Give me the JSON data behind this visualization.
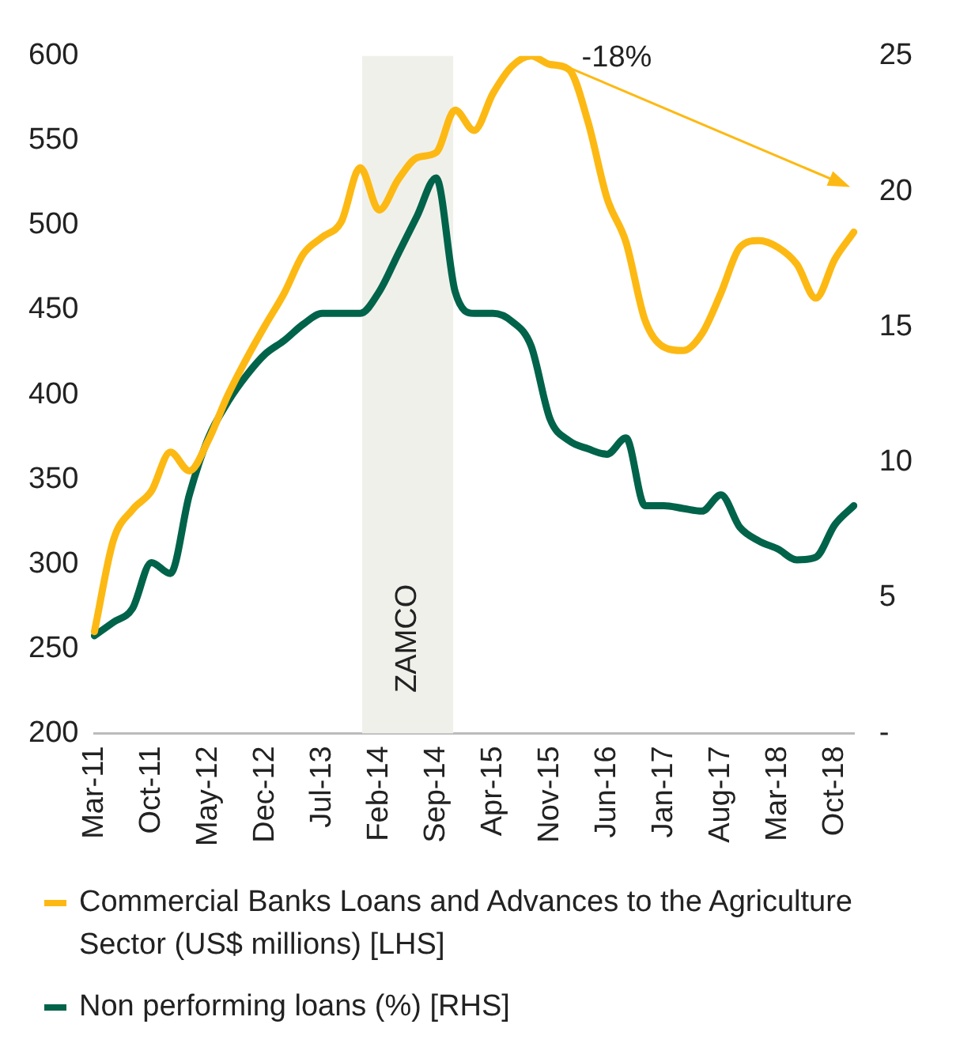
{
  "chart_data": {
    "type": "line",
    "categories": [
      "Mar-11",
      null,
      null,
      "Oct-11",
      null,
      null,
      "May-12",
      null,
      null,
      "Dec-12",
      null,
      null,
      "Jul-13",
      null,
      null,
      "Feb-14",
      null,
      null,
      "Sep-14",
      null,
      null,
      "Apr-15",
      null,
      null,
      "Nov-15",
      null,
      null,
      "Jun-16",
      null,
      null,
      "Jan-17",
      null,
      null,
      "Aug-17",
      null,
      null,
      "Mar-18",
      null,
      null,
      "Oct-18",
      null
    ],
    "series": [
      {
        "name": "Commercial Banks Loans and Advances to the Agriculture Sector (US$ millions) [LHS]",
        "color": "#fdb913",
        "values": [
          260,
          314,
          332,
          343,
          366,
          355,
          373,
          399,
          421,
          441,
          460,
          483,
          493,
          502,
          534,
          509,
          527,
          540,
          543,
          568,
          556,
          578,
          594,
          600,
          595,
          592,
          561,
          516,
          490,
          444,
          428,
          426,
          436,
          460,
          487,
          491,
          487,
          477,
          457,
          480,
          496
        ]
      },
      {
        "name": "Non performing loans (%) [RHS]",
        "color": "#00634a",
        "axis": "y2",
        "values": [
          3.6,
          4.1,
          4.6,
          6.3,
          5.9,
          8.8,
          10.9,
          12.2,
          13.2,
          14.0,
          14.5,
          15.1,
          15.5,
          15.5,
          15.5,
          16.3,
          17.7,
          19.1,
          20.5,
          16.3,
          15.5,
          15.5,
          15.2,
          14.3,
          11.6,
          10.8,
          10.5,
          10.3,
          10.9,
          8.4,
          8.4,
          8.3,
          8.2,
          8.8,
          7.6,
          7.1,
          6.8,
          6.4,
          6.5,
          7.7,
          8.4
        ]
      }
    ],
    "ylim": [
      200,
      600
    ],
    "yticks": [
      200,
      250,
      300,
      350,
      400,
      450,
      500,
      550,
      600
    ],
    "y2lim": [
      0,
      25
    ],
    "y2ticks": [
      {
        "value": 0,
        "label": "-"
      },
      5,
      10,
      15,
      20,
      25
    ],
    "bands": [
      {
        "axis": "x",
        "from": "Feb-14",
        "to": "Sep-14",
        "label": "ZAMCO",
        "color": "#f0f0eb"
      }
    ],
    "annotations": [
      {
        "text": "-18%",
        "x": "Nov-15",
        "y": 595
      }
    ],
    "grid": false,
    "legend": "bottom",
    "marker": "none",
    "line_style": "solid"
  }
}
